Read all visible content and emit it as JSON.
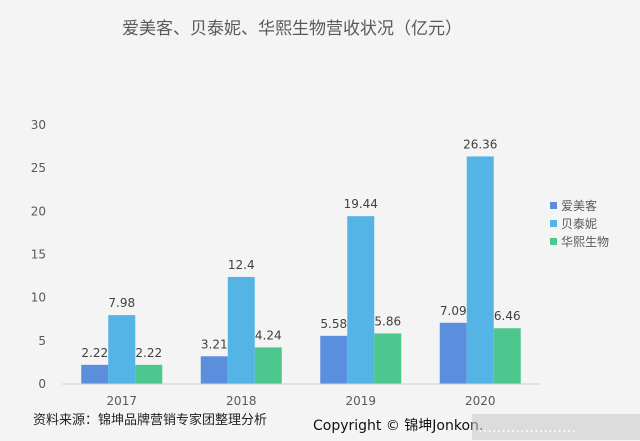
{
  "chart_data": {
    "type": "bar",
    "title": "爱美客、贝泰妮、华熙生物营收状况（亿元）",
    "categories": [
      "2017",
      "2018",
      "2019",
      "2020"
    ],
    "series": [
      {
        "name": "爱美客",
        "color": "#5b8fde",
        "values": [
          2.22,
          3.21,
          5.58,
          7.09
        ]
      },
      {
        "name": "贝泰妮",
        "color": "#54b4e6",
        "values": [
          7.98,
          12.4,
          19.44,
          26.36
        ]
      },
      {
        "name": "华熙生物",
        "color": "#4ec78f",
        "values": [
          2.22,
          4.24,
          5.86,
          6.46
        ]
      }
    ],
    "ylim": [
      0,
      30
    ],
    "yticks": [
      0,
      5,
      10,
      15,
      20,
      25,
      30
    ],
    "grid": false,
    "legend": "right"
  },
  "footer": {
    "source": "资料来源：锦坤品牌营销专家团整理分析",
    "copyright": "Copyright © 锦坤Jonkon.",
    "watermark": "…………………"
  }
}
